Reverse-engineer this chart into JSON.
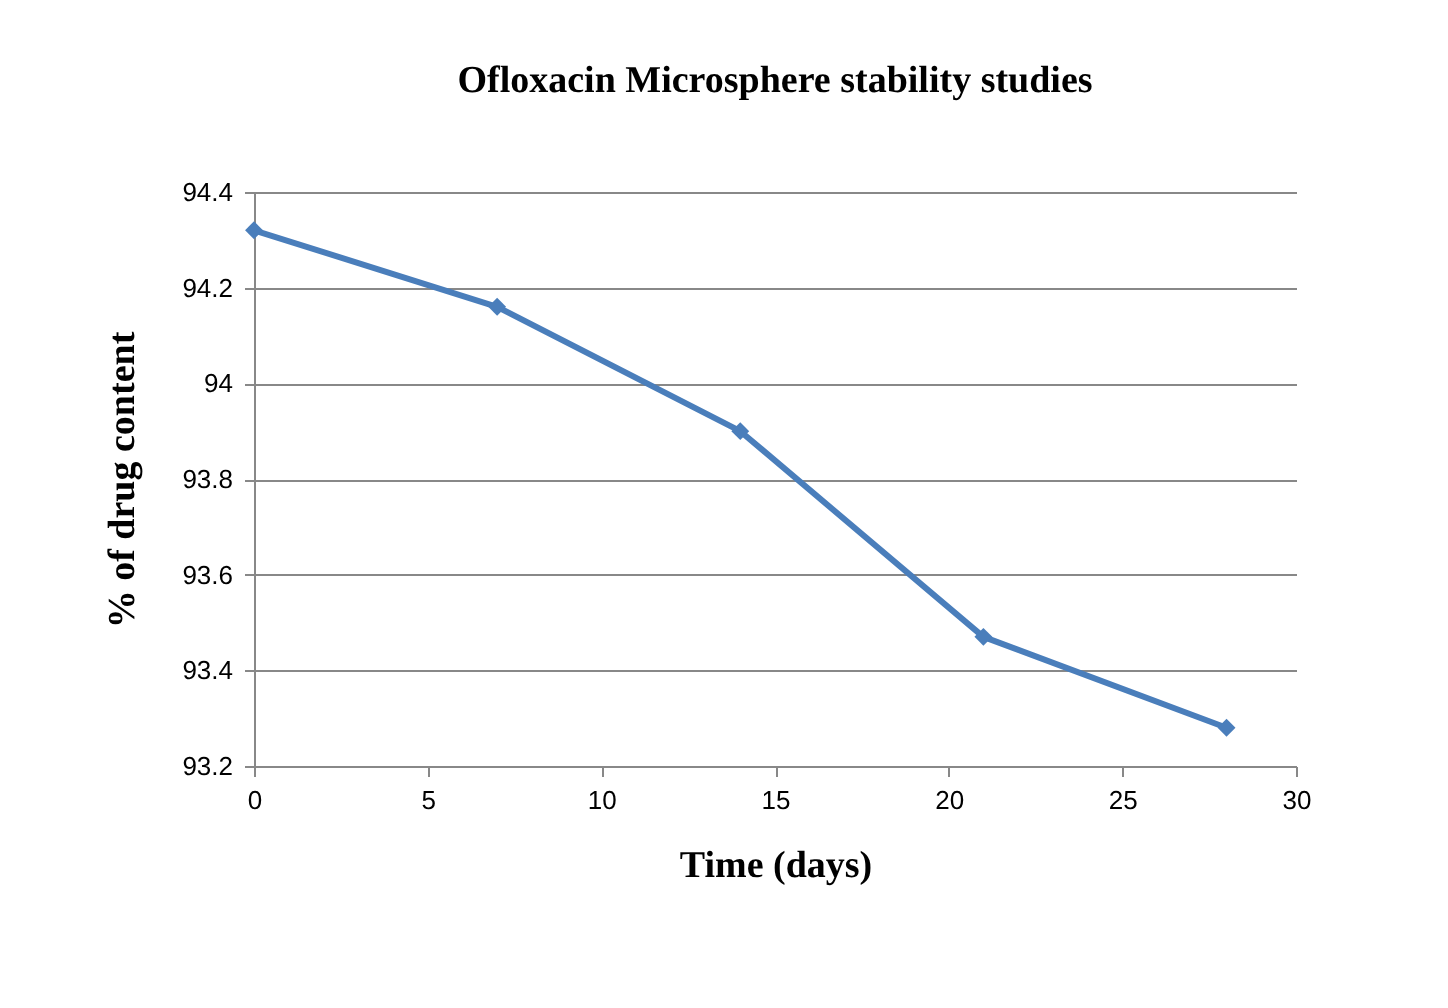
{
  "chart_data": {
    "type": "line",
    "title": "Ofloxacin Microsphere  stability studies",
    "xlabel": "Time (days)",
    "ylabel": "% of drug content",
    "x": [
      0,
      7,
      14,
      21,
      28
    ],
    "series": [
      {
        "color": "#4a7ebb",
        "values": [
          94.32,
          94.16,
          93.9,
          93.47,
          93.28
        ]
      }
    ],
    "xlim": [
      0,
      30
    ],
    "xticks": [
      0,
      5,
      10,
      15,
      20,
      25,
      30
    ],
    "ylim": [
      93.2,
      94.4
    ],
    "yticks": [
      93.2,
      93.4,
      93.6,
      93.8,
      94,
      94.2,
      94.4
    ],
    "grid": "y",
    "marker": "diamond",
    "line_style": "solid"
  }
}
